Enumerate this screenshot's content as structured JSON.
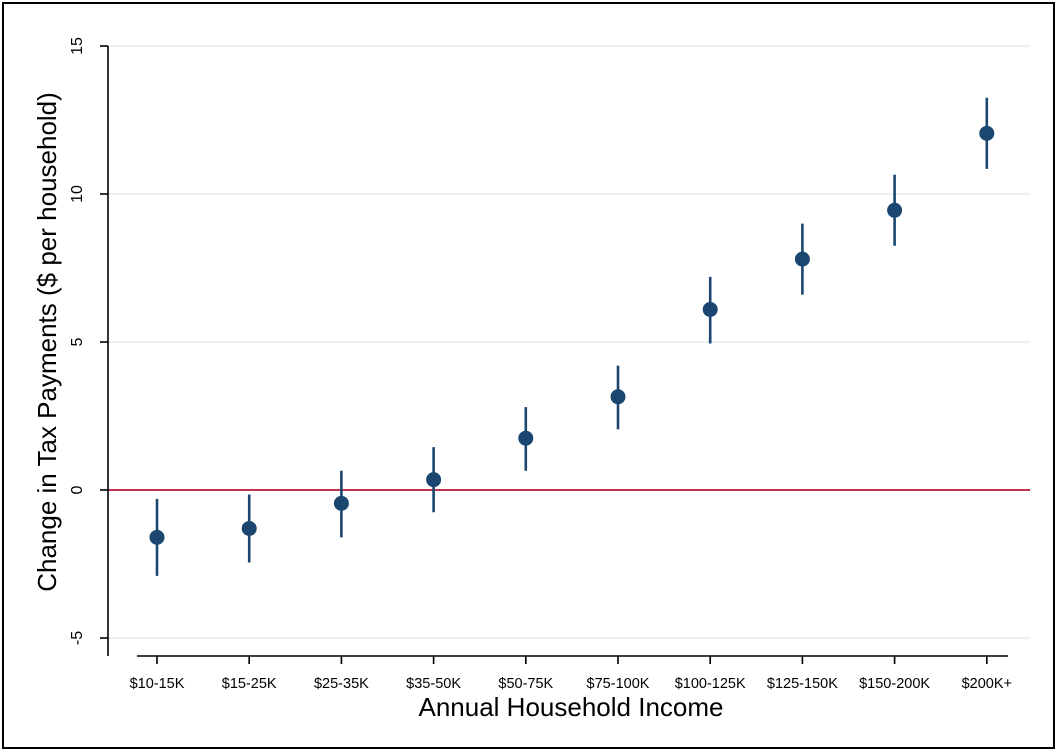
{
  "chart_data": {
    "type": "scatter",
    "title": "",
    "xlabel": "Annual Household Income",
    "ylabel": "Change in Tax Payments ($ per household)",
    "categories": [
      "$10-15K",
      "$15-25K",
      "$25-35K",
      "$35-50K",
      "$50-75K",
      "$75-100K",
      "$100-125K",
      "$125-150K",
      "$150-200K",
      "$200K+"
    ],
    "series": [
      {
        "values": [
          -1.6,
          -1.3,
          -0.45,
          0.35,
          1.75,
          3.15,
          6.1,
          7.8,
          9.45,
          12.05
        ],
        "ci_low": [
          -2.9,
          -2.45,
          -1.6,
          -0.75,
          0.65,
          2.05,
          4.95,
          6.6,
          8.25,
          10.85
        ],
        "ci_high": [
          -0.3,
          -0.15,
          0.65,
          1.45,
          2.8,
          4.2,
          7.2,
          9.0,
          10.65,
          13.25
        ]
      }
    ],
    "ylim": [
      -5,
      15
    ],
    "yticks": [
      -5,
      0,
      5,
      10,
      15
    ],
    "reference_line_y": 0,
    "grid": true,
    "colors": {
      "marker": "#1a4670",
      "reference_line": "#c0334d",
      "grid": "#dde9ec"
    }
  }
}
